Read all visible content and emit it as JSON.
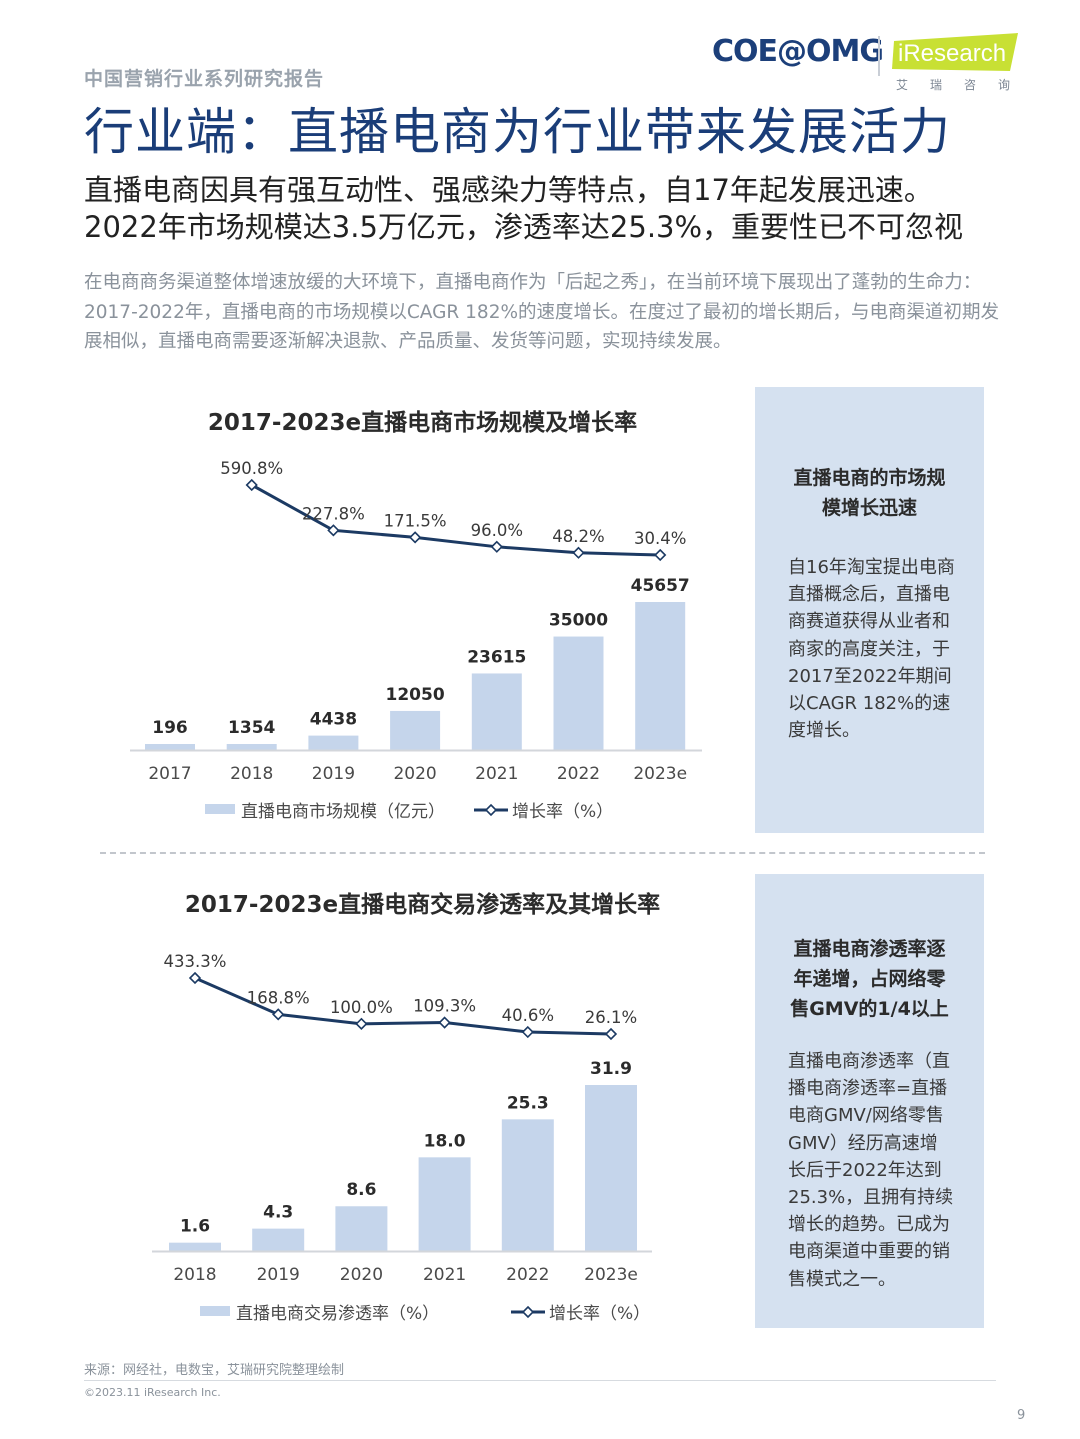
{
  "header": {
    "series_label": "中国营销行业系列研究报告",
    "logo_coe": "COE@OMG",
    "logo_iresearch": "iResearch",
    "logo_sub": "艾瑞咨询",
    "title": "行业端：直播电商为行业带来发展活力"
  },
  "headline": {
    "line1": "直播电商因具有强互动性、强感染力等特点，自17年起发展迅速。",
    "line2": "2022年市场规模达3.5万亿元，渗透率达25.3%，重要性已不可忽视"
  },
  "intro": "在电商商务渠道整体增速放缓的大环境下，直播电商作为「后起之秀」，在当前环境下展现出了蓬勃的生命力：2017-2022年，直播电商的市场规模以CAGR 182%的速度增长。在度过了最初的增长期后，与电商渠道初期发展相似，直播电商需要逐渐解决退款、产品质量、发货等问题，实现持续发展。",
  "colors": {
    "bar": "#c5d5eb",
    "line": "#1c3a63",
    "title": "#1a3d78",
    "side_bg": "#d5e1f0"
  },
  "chart_data": [
    {
      "type": "bar",
      "title": "2017-2023e直播电商市场规模及增长率",
      "categories": [
        "2017",
        "2018",
        "2019",
        "2020",
        "2021",
        "2022",
        "2023e"
      ],
      "series": [
        {
          "name": "直播电商市场规模（亿元）",
          "type": "bar",
          "values": [
            196,
            1354,
            4438,
            12050,
            23615,
            35000,
            45657
          ],
          "labels": [
            "196",
            "1354",
            "4438",
            "12050",
            "23615",
            "35000",
            "45657"
          ]
        },
        {
          "name": "增长率（%）",
          "type": "line",
          "values": [
            null,
            590.8,
            227.8,
            171.5,
            96.0,
            48.2,
            30.4
          ],
          "labels": [
            null,
            "590.8%",
            "227.8%",
            "171.5%",
            "96.0%",
            "48.2%",
            "30.4%"
          ]
        }
      ],
      "legend": "bottom"
    },
    {
      "type": "bar",
      "title": "2017-2023e直播电商交易渗透率及其增长率",
      "categories": [
        "2018",
        "2019",
        "2020",
        "2021",
        "2022",
        "2023e"
      ],
      "series": [
        {
          "name": "直播电商交易渗透率（%）",
          "type": "bar",
          "values": [
            1.6,
            4.3,
            8.6,
            18.0,
            25.3,
            31.9
          ],
          "labels": [
            "1.6",
            "4.3",
            "8.6",
            "18.0",
            "25.3",
            "31.9"
          ]
        },
        {
          "name": "增长率（%）",
          "type": "line",
          "values": [
            433.3,
            168.8,
            100.0,
            109.3,
            40.6,
            26.1
          ],
          "labels": [
            "433.3%",
            "168.8%",
            "100.0%",
            "109.3%",
            "40.6%",
            "26.1%"
          ]
        }
      ],
      "legend": "bottom"
    }
  ],
  "side1": {
    "title_lines": [
      "直播电商的市场规",
      "模增长迅速"
    ],
    "body_lines": [
      "自16年淘宝提出电商",
      "直播概念后，直播电",
      "商赛道获得从业者和",
      "商家的高度关注，于",
      "2017至2022年期间",
      "以CAGR 182%的速",
      "度增长。"
    ]
  },
  "side2": {
    "title_lines": [
      "直播电商渗透率逐",
      "年递增，占网络零",
      "售GMV的1/4以上"
    ],
    "body_lines": [
      "直播电商渗透率（直",
      "播电商渗透率=直播",
      "电商GMV/网络零售",
      "GMV）经历高速增",
      "长后于2022年达到",
      "25.3%，且拥有持续",
      "增长的趋势。已成为",
      "电商渠道中重要的销",
      "售模式之一。"
    ]
  },
  "footer": {
    "source": "来源：网经社，电数宝，艾瑞研究院整理绘制",
    "copyright": "©2023.11 iResearch Inc.",
    "page": "9"
  }
}
